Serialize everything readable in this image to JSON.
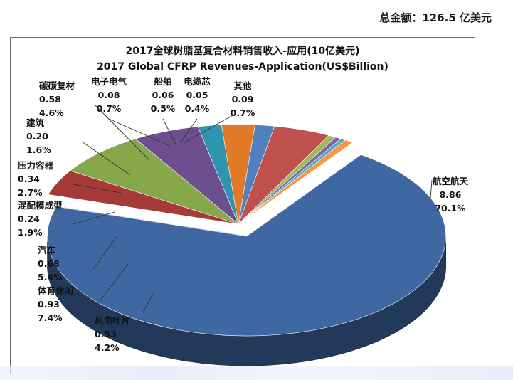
{
  "header": {
    "total_text": "总金额：126.5 亿美元"
  },
  "chart_data": {
    "type": "pie",
    "title": "2017全球树脂基复合材料销售收入-应用(10亿美元)",
    "subtitle": "2017 Global CFRP Revenues-Application(US$Billion)",
    "slices": [
      {
        "id": "aerospace",
        "name": "航空航天",
        "value": "8.86",
        "percent": "70.1%",
        "color": "#3f68a3"
      },
      {
        "id": "wind",
        "name": "风电叶片",
        "value": "0.53",
        "percent": "4.2%",
        "color": "#a63a38"
      },
      {
        "id": "sports",
        "name": "体育休闲",
        "value": "0.93",
        "percent": "7.4%",
        "color": "#87a84a"
      },
      {
        "id": "auto",
        "name": "汽车",
        "value": "0.68",
        "percent": "5.4%",
        "color": "#6d4f8f"
      },
      {
        "id": "molding",
        "name": "混配模成型",
        "value": "0.24",
        "percent": "1.9%",
        "color": "#2f94ad"
      },
      {
        "id": "pressure",
        "name": "压力容器",
        "value": "0.34",
        "percent": "2.7%",
        "color": "#e07a26"
      },
      {
        "id": "building",
        "name": "建筑",
        "value": "0.20",
        "percent": "1.6%",
        "color": "#4e81bd"
      },
      {
        "id": "cc",
        "name": "碳碳复材",
        "value": "0.58",
        "percent": "4.6%",
        "color": "#c0504d"
      },
      {
        "id": "electrical",
        "name": "电子电气",
        "value": "0.08",
        "percent": "0.7%",
        "color": "#9bbb59"
      },
      {
        "id": "ship",
        "name": "船舶",
        "value": "0.06",
        "percent": "0.5%",
        "color": "#8064a2"
      },
      {
        "id": "cable",
        "name": "电缆芯",
        "value": "0.05",
        "percent": "0.4%",
        "color": "#4bacc6"
      },
      {
        "id": "other",
        "name": "其他",
        "value": "0.09",
        "percent": "0.7%",
        "color": "#f79646"
      }
    ]
  }
}
